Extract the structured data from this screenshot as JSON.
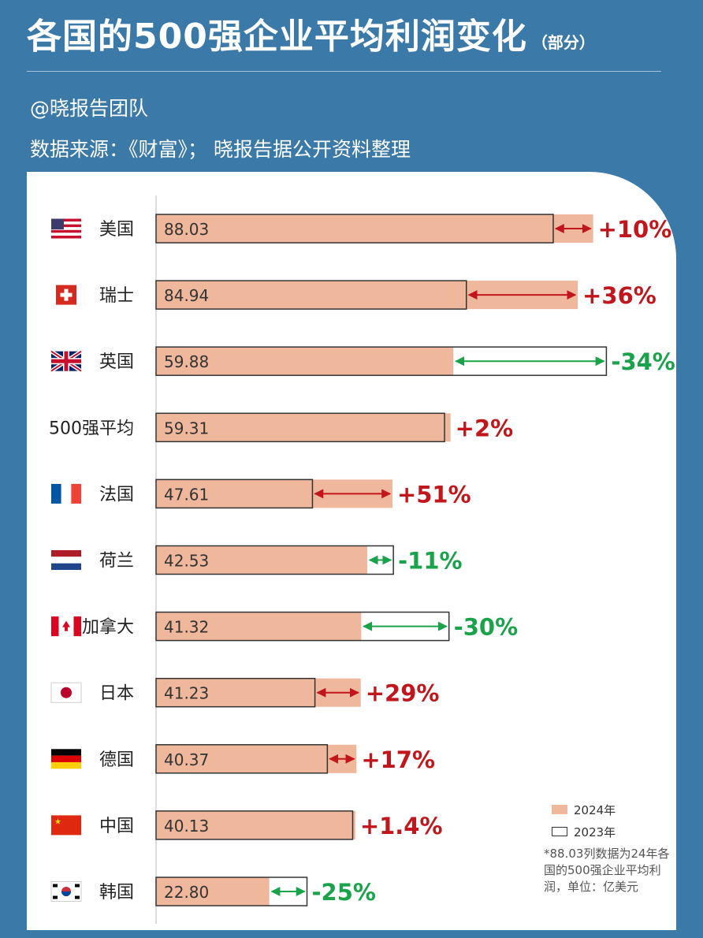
{
  "title": "各国的500强企业平均利润变化",
  "title_note": "（部分）",
  "author": "@晓报告团队",
  "source": "数据来源：《财富》； 晓报告据公开资料整理",
  "legend": {
    "y2024": "2024年",
    "y2023": "2023年"
  },
  "footnote": "*88.03列数据为24年各国的500强企业平均利润，单位：亿美元",
  "colors": {
    "background": "#3a79a8",
    "bar_2024": "#efb79b",
    "increase": "#c0161c",
    "decrease": "#1aa34b",
    "outline_2023": "#333333"
  },
  "chart_data": {
    "type": "bar",
    "orientation": "horizontal",
    "unit": "亿美元",
    "categories": [
      "美国",
      "瑞士",
      "英国",
      "500强平均",
      "法国",
      "荷兰",
      "加拿大",
      "日本",
      "德国",
      "中国",
      "韩国"
    ],
    "flag_icons": [
      "us-flag-icon",
      "switzerland-flag-icon",
      "uk-flag-icon",
      "",
      "france-flag-icon",
      "netherlands-flag-icon",
      "canada-flag-icon",
      "japan-flag-icon",
      "germany-flag-icon",
      "china-flag-icon",
      "korea-flag-icon"
    ],
    "series": [
      {
        "name": "2024年",
        "values": [
          88.03,
          84.94,
          59.88,
          59.31,
          47.61,
          42.53,
          41.32,
          41.23,
          40.37,
          40.13,
          22.8
        ]
      },
      {
        "name": "2023年",
        "values": [
          80.0,
          62.5,
          90.7,
          58.1,
          31.5,
          47.8,
          59.0,
          32.0,
          34.5,
          39.6,
          30.4
        ]
      }
    ],
    "value_labels": [
      "88.03",
      "84.94",
      "59.88",
      "59.31",
      "47.61",
      "42.53",
      "41.32",
      "41.23",
      "40.37",
      "40.13",
      "22.80"
    ],
    "change_labels": [
      "+10%",
      "+36%",
      "-34%",
      "+2%",
      "+51%",
      "-11%",
      "-30%",
      "+29%",
      "+17%",
      "+1.4%",
      "-25%"
    ],
    "xlim": [
      0,
      100
    ],
    "grid": false,
    "legend_position": "bottom-right"
  }
}
